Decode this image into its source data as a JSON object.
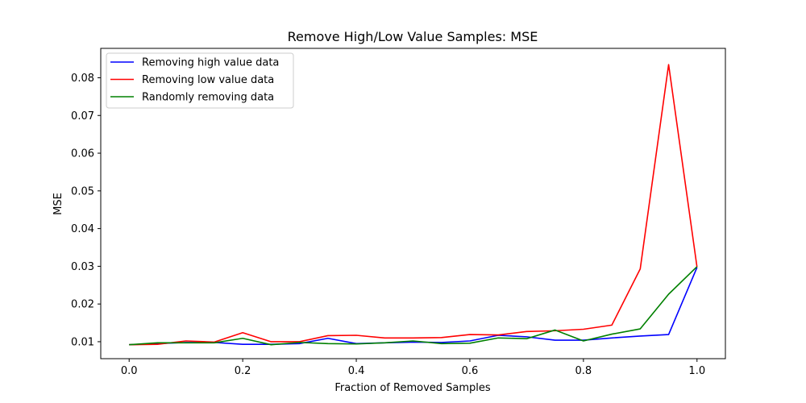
{
  "chart_data": {
    "type": "line",
    "title": "Remove High/Low Value Samples: MSE",
    "xlabel": "Fraction of Removed Samples",
    "ylabel": "MSE",
    "xlim": [
      -0.05,
      1.05
    ],
    "ylim": [
      0.0055,
      0.0878
    ],
    "xticks": [
      "0.0",
      "0.2",
      "0.4",
      "0.6",
      "0.8",
      "1.0"
    ],
    "yticks": [
      "0.01",
      "0.02",
      "0.03",
      "0.04",
      "0.05",
      "0.06",
      "0.07",
      "0.08"
    ],
    "grid": false,
    "legend_position": "top-left",
    "x": [
      0.0,
      0.05,
      0.1,
      0.15,
      0.2,
      0.25,
      0.3,
      0.35,
      0.4,
      0.45,
      0.5,
      0.55,
      0.6,
      0.65,
      0.7,
      0.75,
      0.8,
      0.85,
      0.9,
      0.95,
      1.0
    ],
    "series": [
      {
        "name": "Removing high value data",
        "color": "#0000ff",
        "values": [
          0.0092,
          0.0095,
          0.0098,
          0.0098,
          0.0093,
          0.0093,
          0.0095,
          0.0109,
          0.0095,
          0.0097,
          0.0099,
          0.0098,
          0.0102,
          0.0117,
          0.0113,
          0.0104,
          0.0104,
          0.011,
          0.0115,
          0.0119,
          0.0297
        ]
      },
      {
        "name": "Removing low value data",
        "color": "#ff0000",
        "values": [
          0.0092,
          0.0093,
          0.0102,
          0.0099,
          0.0124,
          0.01,
          0.01,
          0.0116,
          0.0117,
          0.011,
          0.011,
          0.0111,
          0.0119,
          0.0118,
          0.0127,
          0.0129,
          0.0133,
          0.0144,
          0.0293,
          0.0835,
          0.0298
        ]
      },
      {
        "name": "Randomly removing data",
        "color": "#008000",
        "values": [
          0.0092,
          0.0097,
          0.0097,
          0.0097,
          0.0109,
          0.0092,
          0.0098,
          0.0095,
          0.0094,
          0.0097,
          0.0102,
          0.0095,
          0.0096,
          0.011,
          0.0108,
          0.0131,
          0.0102,
          0.012,
          0.0134,
          0.0226,
          0.0299
        ]
      }
    ]
  }
}
